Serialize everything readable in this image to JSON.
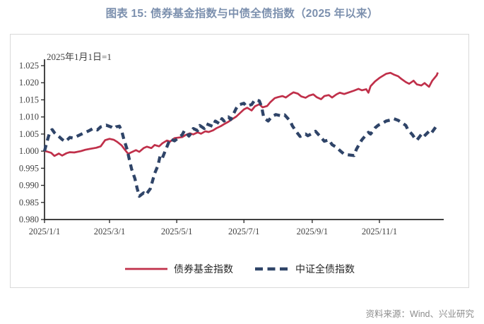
{
  "page": {
    "title": "图表 15: 债券基金指数与中债全债指数（2025 年以来）",
    "source": "资料来源：Wind、兴业研究"
  },
  "chart": {
    "annotation": "2025年1月1日=1",
    "legend": [
      {
        "label": "债券基金指数",
        "color": "#C0304A",
        "style": "solid"
      },
      {
        "label": "中证全债指数",
        "color": "#2F4468",
        "style": "dashed"
      }
    ],
    "colors": {
      "axis": "#262626",
      "tick_label": "#3F3F3F",
      "frame_border": "#D9D9D9",
      "title": "#7C90AE",
      "source_text": "#8C8C8C"
    }
  },
  "chart_data": {
    "type": "line",
    "title": "图表 15: 债券基金指数与中债全债指数（2025 年以来）",
    "subtitle_annotation": "2025年1月1日=1",
    "ylim": [
      0.98,
      1.025
    ],
    "y_tick_step": 0.005,
    "y_ticks": [
      1.025,
      1.02,
      1.015,
      1.01,
      1.005,
      1.0,
      0.995,
      0.99,
      0.985,
      0.98
    ],
    "x_ticks": [
      {
        "label": "2025/1/1",
        "date": "2025-01-01"
      },
      {
        "label": "2025/3/1",
        "date": "2025-03-01"
      },
      {
        "label": "2025/5/1",
        "date": "2025-05-01"
      },
      {
        "label": "2025/7/1",
        "date": "2025-07-01"
      },
      {
        "label": "2025/9/1",
        "date": "2025-09-01"
      },
      {
        "label": "2025/11/1",
        "date": "2025-11-01"
      }
    ],
    "legend_position": "bottom",
    "grid": false,
    "series": [
      {
        "name": "债券基金指数",
        "color": "#C0304A",
        "style": "solid",
        "points": [
          [
            "01-01",
            1.0
          ],
          [
            "01-03",
            0.9999
          ],
          [
            "01-07",
            0.9995
          ],
          [
            "01-10",
            0.9986
          ],
          [
            "01-14",
            0.9993
          ],
          [
            "01-17",
            0.9987
          ],
          [
            "01-21",
            0.9994
          ],
          [
            "01-24",
            0.9997
          ],
          [
            "01-28",
            0.9996
          ],
          [
            "02-03",
            1.0
          ],
          [
            "02-07",
            1.0004
          ],
          [
            "02-12",
            1.0007
          ],
          [
            "02-17",
            1.001
          ],
          [
            "02-21",
            1.0014
          ],
          [
            "02-25",
            1.0032
          ],
          [
            "03-01",
            1.0036
          ],
          [
            "03-05",
            1.0033
          ],
          [
            "03-08",
            1.0027
          ],
          [
            "03-12",
            1.0017
          ],
          [
            "03-15",
            1.0004
          ],
          [
            "03-18",
            0.9992
          ],
          [
            "03-21",
            0.9997
          ],
          [
            "03-25",
            1.0003
          ],
          [
            "03-28",
            0.9998
          ],
          [
            "04-01",
            1.0009
          ],
          [
            "04-04",
            1.0013
          ],
          [
            "04-08",
            1.0009
          ],
          [
            "04-11",
            1.0018
          ],
          [
            "04-15",
            1.0014
          ],
          [
            "04-18",
            1.0023
          ],
          [
            "04-22",
            1.0031
          ],
          [
            "04-25",
            1.0028
          ],
          [
            "04-29",
            1.0038
          ],
          [
            "05-06",
            1.0041
          ],
          [
            "05-09",
            1.0047
          ],
          [
            "05-13",
            1.0052
          ],
          [
            "05-16",
            1.0049
          ],
          [
            "05-20",
            1.0055
          ],
          [
            "05-23",
            1.0051
          ],
          [
            "05-27",
            1.0058
          ],
          [
            "05-30",
            1.0056
          ],
          [
            "06-03",
            1.0061
          ],
          [
            "06-06",
            1.0067
          ],
          [
            "06-10",
            1.0073
          ],
          [
            "06-13",
            1.0079
          ],
          [
            "06-17",
            1.0086
          ],
          [
            "06-20",
            1.0093
          ],
          [
            "06-24",
            1.0101
          ],
          [
            "06-27",
            1.011
          ],
          [
            "07-01",
            1.0122
          ],
          [
            "07-04",
            1.0127
          ],
          [
            "07-08",
            1.0119
          ],
          [
            "07-11",
            1.0131
          ],
          [
            "07-15",
            1.0137
          ],
          [
            "07-18",
            1.0128
          ],
          [
            "07-22",
            1.0132
          ],
          [
            "07-25",
            1.0143
          ],
          [
            "07-29",
            1.0155
          ],
          [
            "08-01",
            1.0158
          ],
          [
            "08-05",
            1.0161
          ],
          [
            "08-08",
            1.0157
          ],
          [
            "08-12",
            1.0166
          ],
          [
            "08-15",
            1.0172
          ],
          [
            "08-19",
            1.0168
          ],
          [
            "08-22",
            1.016
          ],
          [
            "08-26",
            1.0156
          ],
          [
            "08-29",
            1.0162
          ],
          [
            "09-02",
            1.0166
          ],
          [
            "09-05",
            1.0158
          ],
          [
            "09-09",
            1.0152
          ],
          [
            "09-12",
            1.0161
          ],
          [
            "09-16",
            1.0164
          ],
          [
            "09-19",
            1.0157
          ],
          [
            "09-23",
            1.0166
          ],
          [
            "09-26",
            1.0171
          ],
          [
            "09-30",
            1.0167
          ],
          [
            "10-09",
            1.0177
          ],
          [
            "10-13",
            1.0182
          ],
          [
            "10-16",
            1.0178
          ],
          [
            "10-20",
            1.0181
          ],
          [
            "10-22",
            1.0171
          ],
          [
            "10-24",
            1.019
          ],
          [
            "10-28",
            1.0204
          ],
          [
            "11-01",
            1.0214
          ],
          [
            "11-04",
            1.022
          ],
          [
            "11-07",
            1.0226
          ],
          [
            "11-11",
            1.0229
          ],
          [
            "11-14",
            1.0224
          ],
          [
            "11-18",
            1.0219
          ],
          [
            "11-21",
            1.0211
          ],
          [
            "11-25",
            1.0202
          ],
          [
            "11-28",
            1.0197
          ],
          [
            "12-02",
            1.0206
          ],
          [
            "12-05",
            1.0195
          ],
          [
            "12-09",
            1.0192
          ],
          [
            "12-12",
            1.0199
          ],
          [
            "12-16",
            1.0188
          ],
          [
            "12-19",
            1.0206
          ],
          [
            "12-23",
            1.0222
          ],
          [
            "12-24",
            1.023
          ]
        ]
      },
      {
        "name": "中证全债指数",
        "color": "#2F4468",
        "style": "dashed",
        "points": [
          [
            "01-01",
            1.0
          ],
          [
            "01-03",
            1.0025
          ],
          [
            "01-06",
            1.0058
          ],
          [
            "01-08",
            1.0063
          ],
          [
            "01-10",
            1.0054
          ],
          [
            "01-14",
            1.0043
          ],
          [
            "01-17",
            1.0034
          ],
          [
            "01-20",
            1.0028
          ],
          [
            "01-24",
            1.004
          ],
          [
            "01-27",
            1.0038
          ],
          [
            "02-05",
            1.0052
          ],
          [
            "02-10",
            1.0059
          ],
          [
            "02-14",
            1.0066
          ],
          [
            "02-18",
            1.0062
          ],
          [
            "02-21",
            1.0071
          ],
          [
            "02-26",
            1.0076
          ],
          [
            "03-03",
            1.007
          ],
          [
            "03-05",
            1.0066
          ],
          [
            "03-07",
            1.0071
          ],
          [
            "03-10",
            1.0073
          ],
          [
            "03-12",
            1.006
          ],
          [
            "03-14",
            1.0035
          ],
          [
            "03-17",
            1.0005
          ],
          [
            "03-19",
            0.9975
          ],
          [
            "03-21",
            0.9948
          ],
          [
            "03-24",
            0.992
          ],
          [
            "03-26",
            0.9892
          ],
          [
            "03-28",
            0.9868
          ],
          [
            "04-01",
            0.9878
          ],
          [
            "04-03",
            0.9872
          ],
          [
            "04-07",
            0.989
          ],
          [
            "04-09",
            0.9912
          ],
          [
            "04-11",
            0.9935
          ],
          [
            "04-14",
            0.9958
          ],
          [
            "04-16",
            0.9987
          ],
          [
            "04-18",
            0.998
          ],
          [
            "04-22",
            1.0012
          ],
          [
            "04-25",
            1.0036
          ],
          [
            "04-29",
            1.003
          ],
          [
            "05-06",
            1.0048
          ],
          [
            "05-08",
            1.006
          ],
          [
            "05-12",
            1.0044
          ],
          [
            "05-14",
            1.0052
          ],
          [
            "05-16",
            1.0066
          ],
          [
            "05-20",
            1.006
          ],
          [
            "05-22",
            1.0075
          ],
          [
            "05-26",
            1.0066
          ],
          [
            "05-28",
            1.008
          ],
          [
            "06-03",
            1.0072
          ],
          [
            "06-05",
            1.0088
          ],
          [
            "06-09",
            1.008
          ],
          [
            "06-11",
            1.0095
          ],
          [
            "06-13",
            1.0088
          ],
          [
            "06-17",
            1.01
          ],
          [
            "06-19",
            1.0092
          ],
          [
            "06-24",
            1.0125
          ],
          [
            "06-26",
            1.0135
          ],
          [
            "07-01",
            1.014
          ],
          [
            "07-03",
            1.0132
          ],
          [
            "07-08",
            1.0136
          ],
          [
            "07-11",
            1.015
          ],
          [
            "07-15",
            1.0147
          ],
          [
            "07-17",
            1.013
          ],
          [
            "07-19",
            1.0098
          ],
          [
            "07-23",
            1.0088
          ],
          [
            "07-26",
            1.01
          ],
          [
            "07-30",
            1.0107
          ],
          [
            "08-04",
            1.0103
          ],
          [
            "08-07",
            1.0106
          ],
          [
            "08-12",
            1.0088
          ],
          [
            "08-14",
            1.0074
          ],
          [
            "08-18",
            1.0055
          ],
          [
            "08-21",
            1.0043
          ],
          [
            "08-26",
            1.005
          ],
          [
            "08-28",
            1.0045
          ],
          [
            "09-01",
            1.0052
          ],
          [
            "09-04",
            1.0058
          ],
          [
            "09-09",
            1.004
          ],
          [
            "09-12",
            1.0029
          ],
          [
            "09-16",
            1.0033
          ],
          [
            "09-19",
            1.0019
          ],
          [
            "09-23",
            1.0011
          ],
          [
            "09-26",
            1.0002
          ],
          [
            "09-30",
            0.9991
          ],
          [
            "10-09",
            0.9987
          ],
          [
            "10-11",
            1.0005
          ],
          [
            "10-14",
            1.0022
          ],
          [
            "10-16",
            1.0033
          ],
          [
            "10-20",
            1.0048
          ],
          [
            "10-22",
            1.0055
          ],
          [
            "10-24",
            1.005
          ],
          [
            "10-28",
            1.0068
          ],
          [
            "10-31",
            1.0076
          ],
          [
            "11-04",
            1.0082
          ],
          [
            "11-07",
            1.0088
          ],
          [
            "11-11",
            1.0091
          ],
          [
            "11-14",
            1.0095
          ],
          [
            "11-18",
            1.009
          ],
          [
            "11-21",
            1.0084
          ],
          [
            "11-25",
            1.0075
          ],
          [
            "11-27",
            1.0062
          ],
          [
            "12-01",
            1.0048
          ],
          [
            "12-03",
            1.0038
          ],
          [
            "12-05",
            1.0032
          ],
          [
            "12-09",
            1.0049
          ],
          [
            "12-11",
            1.0042
          ],
          [
            "12-16",
            1.0058
          ],
          [
            "12-18",
            1.0052
          ],
          [
            "12-22",
            1.007
          ],
          [
            "12-24",
            1.0077
          ]
        ]
      }
    ]
  }
}
